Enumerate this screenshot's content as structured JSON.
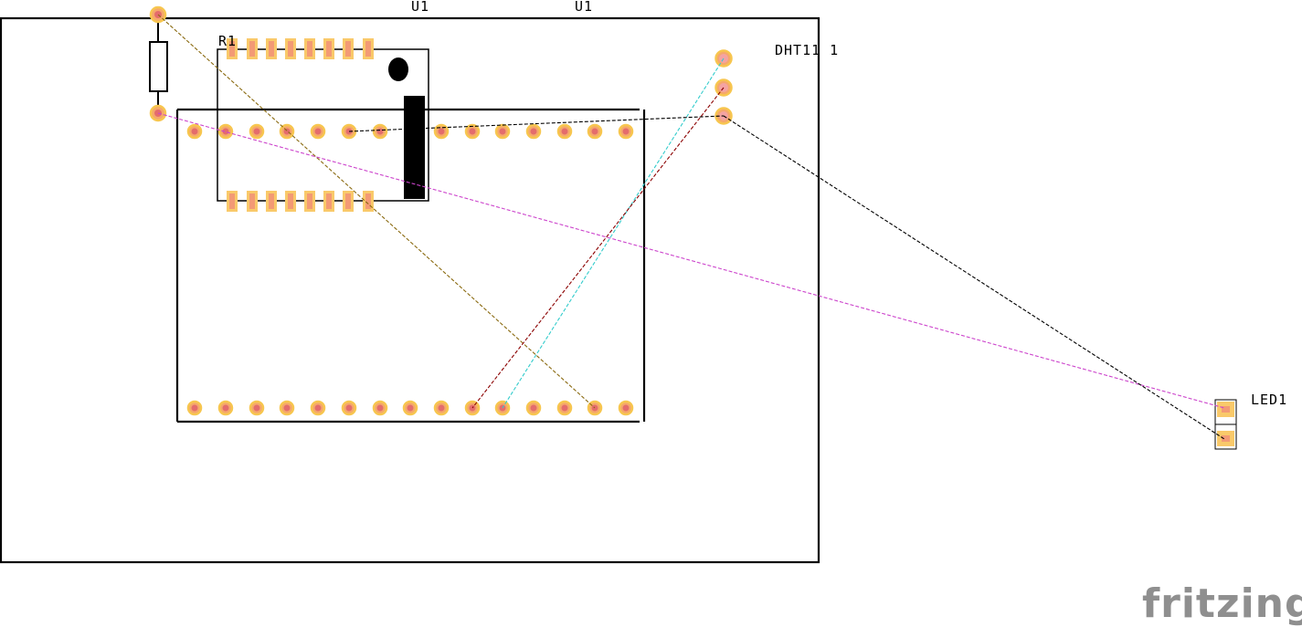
{
  "app": {
    "logo": "fritzing"
  },
  "parts": {
    "r1": {
      "label": "R1"
    },
    "u1_a": {
      "label": "U1"
    },
    "u1_b": {
      "label": "U1"
    },
    "dht11": {
      "label": "DHT11 1"
    },
    "led1": {
      "label": "LED1"
    }
  },
  "colors": {
    "board_outline": "#000000",
    "pad_ring": "#f7c64f",
    "pad_fill": "#f5a86b",
    "pad_hole": "#e46c6c",
    "wire_olive": "#8a6a10",
    "wire_magenta": "#cc44cc",
    "wire_cyan": "#33cccc",
    "wire_darkred": "#8b0000",
    "wire_black": "#000000",
    "logo": "#8f8f8f"
  }
}
